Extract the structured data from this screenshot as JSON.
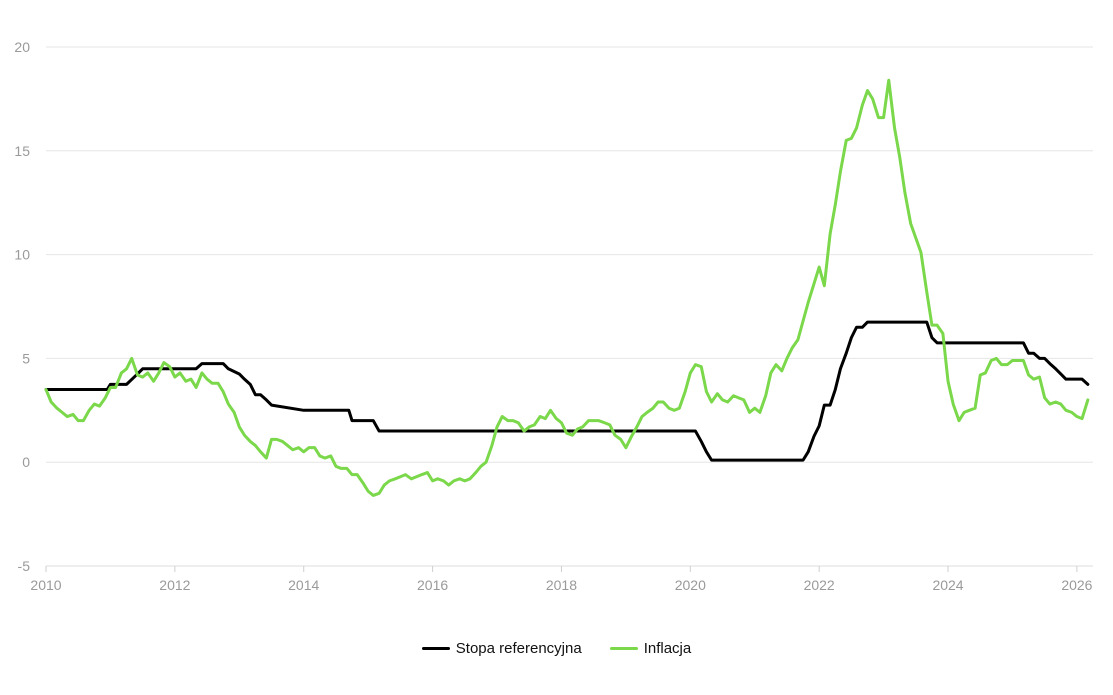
{
  "chart_data": {
    "type": "line",
    "title": "",
    "xlabel": "",
    "ylabel": "",
    "xlim": [
      2010.0,
      2026.25
    ],
    "ylim": [
      -5,
      20
    ],
    "xticks": [
      2010,
      2012,
      2014,
      2016,
      2018,
      2020,
      2022,
      2024,
      2026
    ],
    "yticks": [
      -5,
      0,
      5,
      10,
      15,
      20
    ],
    "grid": "horizontal",
    "legend_position": "bottom-center",
    "series": [
      {
        "name": "Stopa referencyjna",
        "color": "#000000",
        "x": [
          2010.0,
          2010.95,
          2011.0,
          2011.08,
          2011.25,
          2011.42,
          2011.5,
          2012.0,
          2012.33,
          2012.42,
          2012.75,
          2012.83,
          2013.0,
          2013.08,
          2013.17,
          2013.25,
          2013.33,
          2013.42,
          2013.5,
          2014.0,
          2014.5,
          2014.7,
          2014.75,
          2015.0,
          2015.08,
          2015.17,
          2016.0,
          2017.0,
          2018.0,
          2019.0,
          2020.0,
          2020.08,
          2020.17,
          2020.25,
          2020.33,
          2020.5,
          2021.0,
          2021.5,
          2021.75,
          2021.83,
          2021.92,
          2022.0,
          2022.08,
          2022.17,
          2022.25,
          2022.33,
          2022.42,
          2022.5,
          2022.58,
          2022.67,
          2022.75,
          2023.0,
          2023.5,
          2023.67,
          2023.75,
          2023.83,
          2024.0,
          2024.5,
          2025.0,
          2025.17,
          2025.25,
          2025.33,
          2025.42,
          2025.5,
          2025.58,
          2025.67,
          2025.75,
          2025.83,
          2025.92,
          2026.0,
          2026.08,
          2026.17
        ],
        "y": [
          3.5,
          3.5,
          3.75,
          3.75,
          3.75,
          4.25,
          4.5,
          4.5,
          4.5,
          4.75,
          4.75,
          4.5,
          4.25,
          4.0,
          3.75,
          3.25,
          3.25,
          3.0,
          2.75,
          2.5,
          2.5,
          2.5,
          2.0,
          2.0,
          2.0,
          1.5,
          1.5,
          1.5,
          1.5,
          1.5,
          1.5,
          1.5,
          1.0,
          0.5,
          0.1,
          0.1,
          0.1,
          0.1,
          0.1,
          0.5,
          1.25,
          1.75,
          2.75,
          2.75,
          3.5,
          4.5,
          5.25,
          6.0,
          6.5,
          6.5,
          6.75,
          6.75,
          6.75,
          6.75,
          6.0,
          5.75,
          5.75,
          5.75,
          5.75,
          5.75,
          5.25,
          5.25,
          5.0,
          5.0,
          4.75,
          4.5,
          4.25,
          4.0,
          4.0,
          4.0,
          4.0,
          3.75
        ]
      },
      {
        "name": "Inflacja",
        "color": "#7ad84a",
        "x": [
          2010.0,
          2010.08,
          2010.17,
          2010.25,
          2010.33,
          2010.42,
          2010.5,
          2010.58,
          2010.67,
          2010.75,
          2010.83,
          2010.92,
          2011.0,
          2011.08,
          2011.17,
          2011.25,
          2011.33,
          2011.42,
          2011.5,
          2011.58,
          2011.67,
          2011.75,
          2011.83,
          2011.92,
          2012.0,
          2012.08,
          2012.17,
          2012.25,
          2012.33,
          2012.42,
          2012.5,
          2012.58,
          2012.67,
          2012.75,
          2012.83,
          2012.92,
          2013.0,
          2013.08,
          2013.17,
          2013.25,
          2013.33,
          2013.42,
          2013.5,
          2013.58,
          2013.67,
          2013.75,
          2013.83,
          2013.92,
          2014.0,
          2014.08,
          2014.17,
          2014.25,
          2014.33,
          2014.42,
          2014.5,
          2014.58,
          2014.67,
          2014.75,
          2014.83,
          2014.92,
          2015.0,
          2015.08,
          2015.17,
          2015.25,
          2015.33,
          2015.42,
          2015.5,
          2015.58,
          2015.67,
          2015.75,
          2015.83,
          2015.92,
          2016.0,
          2016.08,
          2016.17,
          2016.25,
          2016.33,
          2016.42,
          2016.5,
          2016.58,
          2016.67,
          2016.75,
          2016.83,
          2016.92,
          2017.0,
          2017.08,
          2017.17,
          2017.25,
          2017.33,
          2017.42,
          2017.5,
          2017.58,
          2017.67,
          2017.75,
          2017.83,
          2017.92,
          2018.0,
          2018.08,
          2018.17,
          2018.25,
          2018.33,
          2018.42,
          2018.5,
          2018.58,
          2018.67,
          2018.75,
          2018.83,
          2018.92,
          2019.0,
          2019.08,
          2019.17,
          2019.25,
          2019.33,
          2019.42,
          2019.5,
          2019.58,
          2019.67,
          2019.75,
          2019.83,
          2019.92,
          2020.0,
          2020.08,
          2020.17,
          2020.25,
          2020.33,
          2020.42,
          2020.5,
          2020.58,
          2020.67,
          2020.75,
          2020.83,
          2020.92,
          2021.0,
          2021.08,
          2021.17,
          2021.25,
          2021.33,
          2021.42,
          2021.5,
          2021.58,
          2021.67,
          2021.75,
          2021.83,
          2021.92,
          2022.0,
          2022.08,
          2022.17,
          2022.25,
          2022.33,
          2022.42,
          2022.5,
          2022.58,
          2022.67,
          2022.75,
          2022.83,
          2022.92,
          2023.0,
          2023.08,
          2023.17,
          2023.25,
          2023.33,
          2023.42,
          2023.5,
          2023.58,
          2023.67,
          2023.75,
          2023.83,
          2023.92,
          2024.0,
          2024.08,
          2024.17,
          2024.25,
          2024.33,
          2024.42,
          2024.5,
          2024.58,
          2024.67,
          2024.75,
          2024.83,
          2024.92,
          2025.0,
          2025.08,
          2025.17,
          2025.25,
          2025.33,
          2025.42,
          2025.5,
          2025.58,
          2025.67,
          2025.75,
          2025.83,
          2025.92,
          2026.0,
          2026.08,
          2026.17
        ],
        "y": [
          3.5,
          2.9,
          2.6,
          2.4,
          2.2,
          2.3,
          2.0,
          2.0,
          2.5,
          2.8,
          2.7,
          3.1,
          3.6,
          3.6,
          4.3,
          4.5,
          5.0,
          4.2,
          4.1,
          4.3,
          3.9,
          4.3,
          4.8,
          4.6,
          4.1,
          4.3,
          3.9,
          4.0,
          3.6,
          4.3,
          4.0,
          3.8,
          3.8,
          3.4,
          2.8,
          2.4,
          1.7,
          1.3,
          1.0,
          0.8,
          0.5,
          0.2,
          1.1,
          1.1,
          1.0,
          0.8,
          0.6,
          0.7,
          0.5,
          0.7,
          0.7,
          0.3,
          0.2,
          0.3,
          -0.2,
          -0.3,
          -0.3,
          -0.6,
          -0.6,
          -1.0,
          -1.4,
          -1.6,
          -1.5,
          -1.1,
          -0.9,
          -0.8,
          -0.7,
          -0.6,
          -0.8,
          -0.7,
          -0.6,
          -0.5,
          -0.9,
          -0.8,
          -0.9,
          -1.1,
          -0.9,
          -0.8,
          -0.9,
          -0.8,
          -0.5,
          -0.2,
          0.0,
          0.8,
          1.7,
          2.2,
          2.0,
          2.0,
          1.9,
          1.5,
          1.7,
          1.8,
          2.2,
          2.1,
          2.5,
          2.1,
          1.9,
          1.4,
          1.3,
          1.6,
          1.7,
          2.0,
          2.0,
          2.0,
          1.9,
          1.8,
          1.3,
          1.1,
          0.7,
          1.2,
          1.7,
          2.2,
          2.4,
          2.6,
          2.9,
          2.9,
          2.6,
          2.5,
          2.6,
          3.4,
          4.3,
          4.7,
          4.6,
          3.4,
          2.9,
          3.3,
          3.0,
          2.9,
          3.2,
          3.1,
          3.0,
          2.4,
          2.6,
          2.4,
          3.2,
          4.3,
          4.7,
          4.4,
          5.0,
          5.5,
          5.9,
          6.8,
          7.7,
          8.6,
          9.4,
          8.5,
          11.0,
          12.4,
          14.0,
          15.5,
          15.6,
          16.1,
          17.2,
          17.9,
          17.5,
          16.6,
          16.6,
          18.4,
          16.1,
          14.7,
          13.0,
          11.5,
          10.8,
          10.1,
          8.2,
          6.6,
          6.6,
          6.2,
          3.9,
          2.8,
          2.0,
          2.4,
          2.5,
          2.6,
          4.2,
          4.3,
          4.9,
          5.0,
          4.7,
          4.7,
          4.9,
          4.9,
          4.9,
          4.2,
          4.0,
          4.1,
          3.1,
          2.8,
          2.9,
          2.8,
          2.5,
          2.4,
          2.2,
          2.1,
          3.0
        ]
      }
    ]
  }
}
